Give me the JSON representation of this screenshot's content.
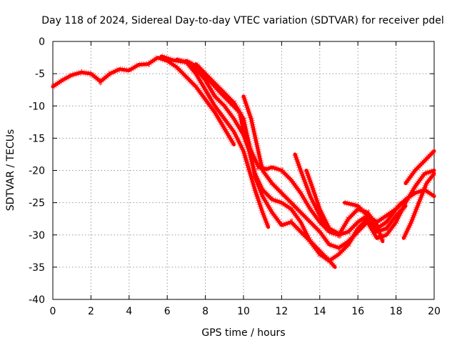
{
  "chart_data": {
    "type": "line",
    "title": "Day 118 of 2024, Sidereal Day-to-day VTEC variation (SDTVAR) for receiver pdel",
    "xlabel": "GPS time / hours",
    "ylabel": "SDTVAR / TECUs",
    "xlim": [
      0,
      20
    ],
    "ylim": [
      -40,
      0
    ],
    "xticks": [
      0,
      2,
      4,
      6,
      8,
      10,
      12,
      14,
      16,
      18,
      20
    ],
    "yticks": [
      0,
      -5,
      -10,
      -15,
      -20,
      -25,
      -30,
      -35,
      -40
    ],
    "grid": true,
    "color": "#ff0000",
    "series": [
      {
        "name": "track-1",
        "points": [
          [
            0,
            -7
          ],
          [
            0.5,
            -6
          ],
          [
            1,
            -5.2
          ],
          [
            1.5,
            -4.8
          ],
          [
            2,
            -5
          ],
          [
            2.5,
            -6.2
          ],
          [
            3,
            -5
          ],
          [
            3.5,
            -4.3
          ],
          [
            4,
            -4.5
          ],
          [
            4.5,
            -3.6
          ],
          [
            5,
            -3.5
          ],
          [
            5.5,
            -2.5
          ],
          [
            6,
            -3
          ],
          [
            6.5,
            -4
          ],
          [
            7,
            -5.5
          ],
          [
            7.5,
            -7
          ],
          [
            8,
            -9
          ],
          [
            8.5,
            -11
          ],
          [
            9,
            -13.5
          ],
          [
            9.5,
            -16
          ]
        ]
      },
      {
        "name": "track-2",
        "points": [
          [
            5.7,
            -2.3
          ],
          [
            6.3,
            -2.9
          ],
          [
            7,
            -3.2
          ],
          [
            7.5,
            -5
          ],
          [
            8,
            -7.5
          ],
          [
            8.5,
            -10
          ],
          [
            9,
            -12
          ],
          [
            9.5,
            -14
          ],
          [
            10,
            -17
          ],
          [
            10.3,
            -20
          ],
          [
            10.6,
            -23
          ],
          [
            11,
            -26.5
          ],
          [
            11.3,
            -28.8
          ]
        ]
      },
      {
        "name": "track-3",
        "points": [
          [
            6.5,
            -2.8
          ],
          [
            7.3,
            -3.5
          ],
          [
            8,
            -6
          ],
          [
            8.5,
            -8.5
          ],
          [
            9,
            -10
          ],
          [
            9.5,
            -12
          ],
          [
            10,
            -14.5
          ],
          [
            10.3,
            -17
          ],
          [
            10.6,
            -20.5
          ],
          [
            11,
            -23
          ],
          [
            11.5,
            -24.5
          ],
          [
            12,
            -25
          ],
          [
            12.5,
            -26
          ],
          [
            13,
            -28
          ],
          [
            13.5,
            -31
          ],
          [
            14,
            -33
          ],
          [
            14.5,
            -34
          ],
          [
            15,
            -33
          ],
          [
            15.5,
            -31.5
          ],
          [
            16,
            -29
          ],
          [
            16.5,
            -27.5
          ],
          [
            17,
            -29
          ],
          [
            17.5,
            -28
          ],
          [
            18,
            -26
          ],
          [
            18.5,
            -24.5
          ],
          [
            19,
            -23.5
          ],
          [
            19.5,
            -23
          ],
          [
            20,
            -24
          ]
        ]
      },
      {
        "name": "track-4",
        "points": [
          [
            7,
            -3
          ],
          [
            7.6,
            -4
          ],
          [
            8.2,
            -6
          ],
          [
            8.8,
            -8
          ],
          [
            9.3,
            -9.5
          ],
          [
            9.8,
            -11
          ],
          [
            10,
            -14
          ],
          [
            10.4,
            -17
          ],
          [
            10.8,
            -19.5
          ],
          [
            11.2,
            -19.8
          ],
          [
            11.5,
            -19.5
          ],
          [
            12,
            -20
          ],
          [
            12.5,
            -21.5
          ],
          [
            13,
            -23.5
          ],
          [
            13.5,
            -26
          ],
          [
            14,
            -28
          ],
          [
            14.5,
            -29.5
          ],
          [
            15,
            -30
          ],
          [
            15.5,
            -29.5
          ],
          [
            16,
            -28
          ],
          [
            16.5,
            -27
          ],
          [
            17,
            -28
          ],
          [
            17.5,
            -27
          ],
          [
            18,
            -26
          ],
          [
            18.3,
            -25
          ]
        ]
      },
      {
        "name": "track-5",
        "points": [
          [
            7.5,
            -3.5
          ],
          [
            8,
            -5
          ],
          [
            8.5,
            -6.5
          ],
          [
            9,
            -8
          ],
          [
            9.5,
            -9.5
          ],
          [
            10,
            -12
          ],
          [
            10.3,
            -16
          ],
          [
            10.6,
            -21
          ],
          [
            11,
            -24
          ],
          [
            11.5,
            -26.5
          ],
          [
            12,
            -28.5
          ],
          [
            12.5,
            -28
          ],
          [
            13,
            -29.5
          ],
          [
            13.5,
            -31
          ],
          [
            14,
            -32.5
          ],
          [
            14.5,
            -34
          ],
          [
            14.8,
            -35
          ]
        ]
      },
      {
        "name": "track-6",
        "points": [
          [
            10,
            -8.5
          ],
          [
            10.4,
            -12
          ],
          [
            10.7,
            -16
          ],
          [
            11,
            -20
          ],
          [
            11.5,
            -22
          ],
          [
            12,
            -23.5
          ],
          [
            12.5,
            -25
          ],
          [
            13,
            -26.5
          ],
          [
            13.5,
            -28
          ],
          [
            14,
            -29.5
          ],
          [
            14.5,
            -31.5
          ],
          [
            15,
            -32
          ],
          [
            15.5,
            -31
          ],
          [
            16,
            -29.5
          ],
          [
            16.5,
            -28
          ],
          [
            17,
            -30.5
          ],
          [
            17.5,
            -30
          ],
          [
            18,
            -28
          ],
          [
            18.5,
            -25
          ],
          [
            19,
            -22.5
          ],
          [
            19.5,
            -20.5
          ],
          [
            20,
            -20
          ]
        ]
      },
      {
        "name": "track-7",
        "points": [
          [
            12.7,
            -17.5
          ],
          [
            13,
            -20
          ],
          [
            13.5,
            -24
          ],
          [
            14,
            -27
          ],
          [
            14.5,
            -29.5
          ],
          [
            15,
            -30
          ],
          [
            15.5,
            -27.5
          ],
          [
            16,
            -26
          ],
          [
            16.5,
            -26.5
          ],
          [
            17,
            -28.5
          ],
          [
            17.3,
            -31
          ]
        ]
      },
      {
        "name": "track-8",
        "points": [
          [
            13.3,
            -20
          ],
          [
            13.6,
            -22.5
          ],
          [
            14,
            -26
          ],
          [
            14.5,
            -29
          ],
          [
            15,
            -29.8
          ]
        ]
      },
      {
        "name": "track-9",
        "points": [
          [
            15.3,
            -25
          ],
          [
            16,
            -25.5
          ],
          [
            16.5,
            -27
          ],
          [
            17,
            -29.5
          ],
          [
            17.5,
            -29
          ],
          [
            18,
            -27
          ],
          [
            18.5,
            -25.5
          ]
        ]
      },
      {
        "name": "track-10",
        "points": [
          [
            18.4,
            -30.5
          ],
          [
            18.8,
            -28
          ],
          [
            19.2,
            -25
          ],
          [
            19.6,
            -22
          ],
          [
            20,
            -20.5
          ]
        ]
      },
      {
        "name": "track-11",
        "points": [
          [
            18.5,
            -22
          ],
          [
            19,
            -20
          ],
          [
            19.5,
            -18.5
          ],
          [
            20,
            -17
          ]
        ]
      }
    ]
  }
}
